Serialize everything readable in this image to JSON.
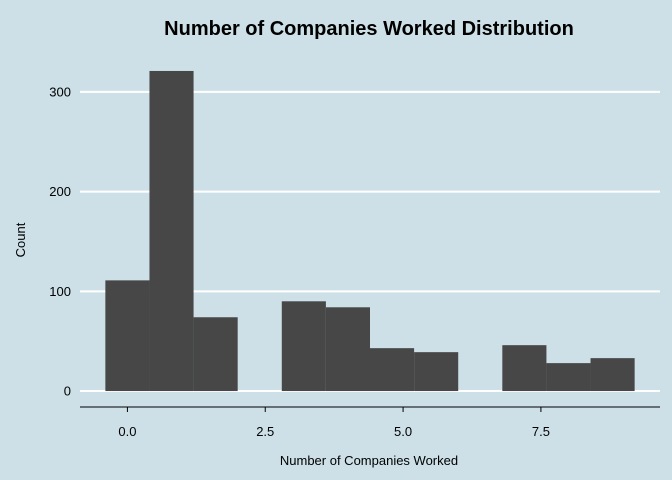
{
  "chart_data": {
    "type": "bar",
    "title": "Number of Companies Worked Distribution",
    "xlabel": "Number of Companies Worked",
    "ylabel": "Count",
    "bins": [
      {
        "x_start": -0.4,
        "x_end": 0.4,
        "count": 111
      },
      {
        "x_start": 0.4,
        "x_end": 1.2,
        "count": 321
      },
      {
        "x_start": 1.2,
        "x_end": 2.0,
        "count": 74
      },
      {
        "x_start": 2.0,
        "x_end": 2.8,
        "count": 0
      },
      {
        "x_start": 2.8,
        "x_end": 3.6,
        "count": 90
      },
      {
        "x_start": 3.6,
        "x_end": 4.4,
        "count": 84
      },
      {
        "x_start": 4.4,
        "x_end": 5.2,
        "count": 43
      },
      {
        "x_start": 5.2,
        "x_end": 6.0,
        "count": 39
      },
      {
        "x_start": 6.0,
        "x_end": 6.8,
        "count": 0
      },
      {
        "x_start": 6.8,
        "x_end": 7.6,
        "count": 46
      },
      {
        "x_start": 7.6,
        "x_end": 8.4,
        "count": 28
      },
      {
        "x_start": 8.4,
        "x_end": 9.2,
        "count": 33
      }
    ],
    "x_ticks": [
      {
        "value": 0,
        "label": "0.0"
      },
      {
        "value": 2.5,
        "label": "2.5"
      },
      {
        "value": 5,
        "label": "5.0"
      },
      {
        "value": 7.5,
        "label": "7.5"
      }
    ],
    "y_ticks": [
      {
        "value": 0,
        "label": "0"
      },
      {
        "value": 100,
        "label": "100"
      },
      {
        "value": 200,
        "label": "200"
      },
      {
        "value": 300,
        "label": "300"
      }
    ],
    "xlim": [
      -0.86,
      9.66
    ],
    "ylim": [
      -16,
      337
    ],
    "grid": "horizontal-major",
    "bar_color": "#474747",
    "grid_color": "#ffffff",
    "background_color": "#cde0e7"
  }
}
